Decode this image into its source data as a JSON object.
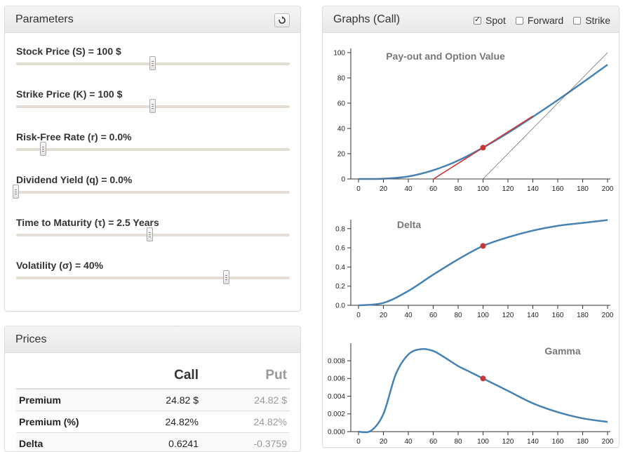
{
  "parameters": {
    "title": "Parameters",
    "items": [
      {
        "label": "Stock Price (S) = 100 $",
        "value": 0.5
      },
      {
        "label": "Strike Price (K) = 100 $",
        "value": 0.5
      },
      {
        "label": "Risk-Free Rate (r) = 0.0%",
        "value": 0.1
      },
      {
        "label": "Dividend Yield (q) = 0.0%",
        "value": 0.0
      },
      {
        "label": "Time to Maturity (τ) = 2.5 Years",
        "value": 0.49
      },
      {
        "label": "Volatility (σ) = 40%",
        "value": 0.77
      }
    ]
  },
  "prices": {
    "title": "Prices",
    "columns": {
      "call": "Call",
      "put": "Put"
    },
    "rows": [
      {
        "label": "Premium",
        "call": "24.82 $",
        "put": "24.82 $"
      },
      {
        "label": "Premium (%)",
        "call": "24.82%",
        "put": "24.82%"
      },
      {
        "label": "Delta",
        "call": "0.6241",
        "put": "-0.3759"
      }
    ]
  },
  "graphs": {
    "title": "Graphs (Call)",
    "options": [
      {
        "label": "Spot",
        "checked": true
      },
      {
        "label": "Forward",
        "checked": false
      },
      {
        "label": "Strike",
        "checked": false
      }
    ],
    "colors": {
      "curve": "#4682b4",
      "point": "#cc3333",
      "tangent": "#cc3333"
    }
  },
  "chart_data": [
    {
      "type": "line",
      "title": "Pay-out and Option Value",
      "x": [
        0,
        20,
        40,
        60,
        80,
        100,
        120,
        140,
        160,
        180,
        200
      ],
      "xlim": [
        0,
        200
      ],
      "ylim": [
        0,
        100
      ],
      "xticks": [
        "0",
        "20",
        "40",
        "60",
        "80",
        "100",
        "120",
        "140",
        "160",
        "180",
        "200"
      ],
      "yticks": [
        "0",
        "20",
        "40",
        "60",
        "80",
        "100"
      ],
      "series": [
        {
          "values": [
            0,
            0.2,
            2.0,
            6.9,
            14.6,
            24.8,
            36.5,
            49.2,
            62.5,
            76.3,
            90.5
          ]
        },
        {
          "values": [
            0,
            0,
            0,
            0,
            0,
            0,
            20,
            40,
            60,
            80,
            100
          ]
        }
      ],
      "point": {
        "x": 100,
        "y": 24.8
      },
      "tangent": {
        "x0": 60,
        "x1": 140,
        "slope": 0.6241
      }
    },
    {
      "type": "line",
      "title": "Delta",
      "x": [
        0,
        20,
        40,
        60,
        80,
        100,
        120,
        140,
        160,
        180,
        200
      ],
      "xlim": [
        0,
        200
      ],
      "ylim": [
        0,
        0.85
      ],
      "xticks": [
        "0",
        "20",
        "40",
        "60",
        "80",
        "100",
        "120",
        "140",
        "160",
        "180",
        "200"
      ],
      "yticks": [
        "0.0",
        "0.2",
        "0.4",
        "0.6",
        "0.8"
      ],
      "series": [
        {
          "values": [
            0,
            0.025,
            0.15,
            0.32,
            0.48,
            0.62,
            0.71,
            0.78,
            0.83,
            0.86,
            0.89
          ]
        }
      ],
      "point": {
        "x": 100,
        "y": 0.62
      }
    },
    {
      "type": "line",
      "title": "Gamma",
      "x": [
        0,
        10,
        20,
        30,
        40,
        50,
        60,
        70,
        80,
        90,
        100,
        120,
        140,
        160,
        180,
        200
      ],
      "xlim": [
        0,
        200
      ],
      "ylim": [
        0,
        0.0095
      ],
      "xticks": [
        "0",
        "20",
        "40",
        "60",
        "80",
        "100",
        "120",
        "140",
        "160",
        "180",
        "200"
      ],
      "yticks": [
        "0.000",
        "0.002",
        "0.004",
        "0.006",
        "0.008"
      ],
      "series": [
        {
          "values": [
            0,
            0.0001,
            0.002,
            0.0065,
            0.0087,
            0.0093,
            0.0091,
            0.0083,
            0.0074,
            0.0067,
            0.006,
            0.0046,
            0.0032,
            0.0022,
            0.0015,
            0.0011
          ]
        }
      ],
      "point": {
        "x": 100,
        "y": 0.006
      }
    }
  ]
}
